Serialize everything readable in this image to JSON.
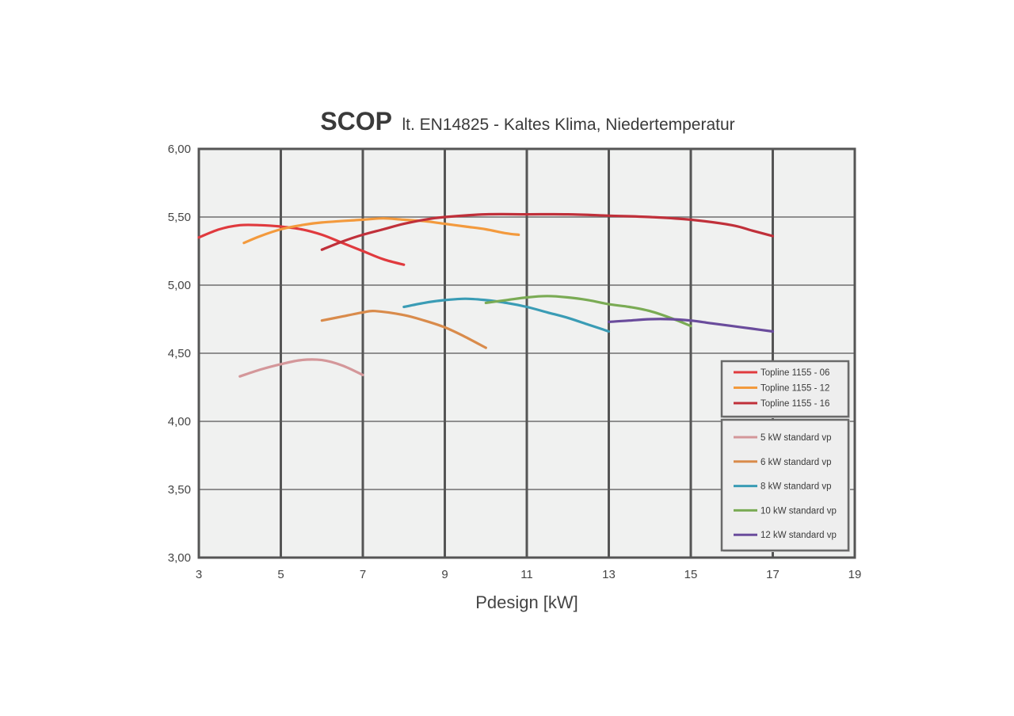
{
  "chart_data": {
    "type": "line",
    "title": "SCOP",
    "subtitle": "lt. EN14825 - Kaltes Klima, Niedertemperatur",
    "xlabel": "Pdesign [kW]",
    "ylabel": "",
    "xlim": [
      3,
      19
    ],
    "ylim": [
      3.0,
      6.0
    ],
    "xticks": [
      3,
      5,
      7,
      9,
      11,
      13,
      15,
      17,
      19
    ],
    "xtick_labels": [
      "3",
      "5",
      "7",
      "9",
      "11",
      "13",
      "15",
      "17",
      "19"
    ],
    "yticks": [
      3.0,
      3.5,
      4.0,
      4.5,
      5.0,
      5.5,
      6.0
    ],
    "ytick_labels": [
      "3,00",
      "3,50",
      "4,00",
      "4,50",
      "5,00",
      "5,50",
      "6,00"
    ],
    "grid": true,
    "legend_position": "bottom-right",
    "legend_groups": [
      [
        "Topline 1155 - 06",
        "Topline 1155 - 12",
        "Topline 1155 - 16"
      ],
      [
        "5 kW standard vp",
        "6 kW standard vp",
        "8 kW standard vp",
        "10 kW standard vp",
        "12 kW standard vp"
      ]
    ],
    "series": [
      {
        "name": "Topline 1155 - 06",
        "color": "#e03a3e",
        "points": [
          [
            3.0,
            5.35
          ],
          [
            3.5,
            5.41
          ],
          [
            4.0,
            5.44
          ],
          [
            4.5,
            5.44
          ],
          [
            5.0,
            5.43
          ],
          [
            5.5,
            5.41
          ],
          [
            6.0,
            5.37
          ],
          [
            6.5,
            5.31
          ],
          [
            7.0,
            5.25
          ],
          [
            7.5,
            5.19
          ],
          [
            8.0,
            5.15
          ]
        ]
      },
      {
        "name": "Topline 1155 - 12",
        "color": "#f39a3d",
        "points": [
          [
            4.1,
            5.31
          ],
          [
            4.5,
            5.36
          ],
          [
            5.0,
            5.41
          ],
          [
            5.5,
            5.44
          ],
          [
            6.0,
            5.46
          ],
          [
            7.0,
            5.48
          ],
          [
            7.5,
            5.49
          ],
          [
            8.0,
            5.48
          ],
          [
            8.5,
            5.47
          ],
          [
            9.0,
            5.45
          ],
          [
            9.5,
            5.43
          ],
          [
            10.0,
            5.41
          ],
          [
            10.5,
            5.38
          ],
          [
            10.8,
            5.37
          ]
        ]
      },
      {
        "name": "Topline 1155 - 16",
        "color": "#c0303a",
        "points": [
          [
            6.0,
            5.26
          ],
          [
            6.5,
            5.32
          ],
          [
            7.0,
            5.37
          ],
          [
            7.5,
            5.41
          ],
          [
            8.0,
            5.45
          ],
          [
            8.5,
            5.48
          ],
          [
            9.0,
            5.5
          ],
          [
            10.0,
            5.52
          ],
          [
            11.0,
            5.52
          ],
          [
            12.0,
            5.52
          ],
          [
            13.0,
            5.51
          ],
          [
            14.0,
            5.5
          ],
          [
            15.0,
            5.48
          ],
          [
            16.0,
            5.44
          ],
          [
            16.5,
            5.4
          ],
          [
            17.0,
            5.36
          ]
        ]
      },
      {
        "name": "5 kW standard vp",
        "color": "#d4979a",
        "points": [
          [
            4.0,
            4.33
          ],
          [
            4.5,
            4.38
          ],
          [
            5.0,
            4.42
          ],
          [
            5.5,
            4.45
          ],
          [
            6.0,
            4.45
          ],
          [
            6.5,
            4.41
          ],
          [
            7.0,
            4.34
          ]
        ]
      },
      {
        "name": "6 kW standard vp",
        "color": "#d98b4b",
        "points": [
          [
            6.0,
            4.74
          ],
          [
            6.5,
            4.77
          ],
          [
            7.0,
            4.8
          ],
          [
            7.3,
            4.81
          ],
          [
            8.0,
            4.78
          ],
          [
            8.5,
            4.74
          ],
          [
            9.0,
            4.69
          ],
          [
            9.5,
            4.62
          ],
          [
            10.0,
            4.54
          ]
        ]
      },
      {
        "name": "8 kW standard vp",
        "color": "#3a9cb5",
        "points": [
          [
            8.0,
            4.84
          ],
          [
            8.5,
            4.87
          ],
          [
            9.0,
            4.89
          ],
          [
            9.5,
            4.9
          ],
          [
            10.0,
            4.89
          ],
          [
            10.5,
            4.87
          ],
          [
            11.0,
            4.84
          ],
          [
            11.5,
            4.8
          ],
          [
            12.0,
            4.76
          ],
          [
            12.5,
            4.71
          ],
          [
            13.0,
            4.66
          ]
        ]
      },
      {
        "name": "10 kW standard vp",
        "color": "#7aab54",
        "points": [
          [
            10.0,
            4.87
          ],
          [
            10.5,
            4.89
          ],
          [
            11.0,
            4.91
          ],
          [
            11.5,
            4.92
          ],
          [
            12.0,
            4.91
          ],
          [
            12.5,
            4.89
          ],
          [
            13.0,
            4.86
          ],
          [
            13.5,
            4.84
          ],
          [
            14.0,
            4.81
          ],
          [
            14.5,
            4.76
          ],
          [
            15.0,
            4.7
          ]
        ]
      },
      {
        "name": "12 kW standard vp",
        "color": "#6a4c9c",
        "points": [
          [
            13.0,
            4.73
          ],
          [
            13.5,
            4.74
          ],
          [
            14.0,
            4.75
          ],
          [
            14.5,
            4.75
          ],
          [
            15.0,
            4.74
          ],
          [
            15.5,
            4.72
          ],
          [
            16.0,
            4.7
          ],
          [
            16.5,
            4.68
          ],
          [
            17.0,
            4.66
          ]
        ]
      }
    ]
  }
}
